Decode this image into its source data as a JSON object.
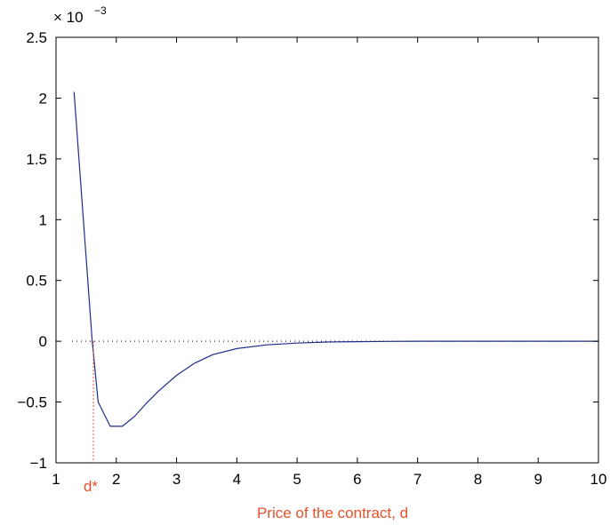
{
  "chart_data": {
    "type": "line",
    "xlabel": "Price of the contract, d",
    "xlim": [
      1,
      10
    ],
    "ylim": [
      -1,
      2.5
    ],
    "y_scale_factor": {
      "base": "× 10",
      "exponent": "−3"
    },
    "xticks": [
      1,
      2,
      3,
      4,
      5,
      6,
      7,
      8,
      9,
      10
    ],
    "xtick_labels": [
      "1",
      "2",
      "3",
      "4",
      "5",
      "6",
      "7",
      "8",
      "9",
      "10"
    ],
    "yticks": [
      -1,
      -0.5,
      0,
      0.5,
      1,
      1.5,
      2,
      2.5
    ],
    "ytick_labels": [
      "−1",
      "−0.5",
      "0",
      "0.5",
      "1",
      "1.5",
      "2",
      "2.5"
    ],
    "grid": false,
    "series": [
      {
        "color": "#1f2c8c",
        "x": [
          1.3,
          1.6,
          1.7,
          1.9,
          2.1,
          2.3,
          2.5,
          2.7,
          3.0,
          3.3,
          3.6,
          4.0,
          4.5,
          5.0,
          5.5,
          6.0,
          6.5,
          7.0,
          8.0,
          9.0,
          10.0
        ],
        "y": [
          2.05,
          0.0,
          -0.5,
          -0.7,
          -0.7,
          -0.62,
          -0.51,
          -0.41,
          -0.28,
          -0.18,
          -0.11,
          -0.06,
          -0.03,
          -0.015,
          -0.006,
          -0.003,
          -0.001,
          0.0,
          0.0,
          0.0,
          0.0
        ]
      }
    ],
    "reference_line": {
      "y": 0,
      "style": "dotted",
      "color": "#000000"
    },
    "annotation": {
      "label": "d*",
      "x": 1.62,
      "color": "#e8502a"
    },
    "xlabel_color": "#e8502a"
  }
}
